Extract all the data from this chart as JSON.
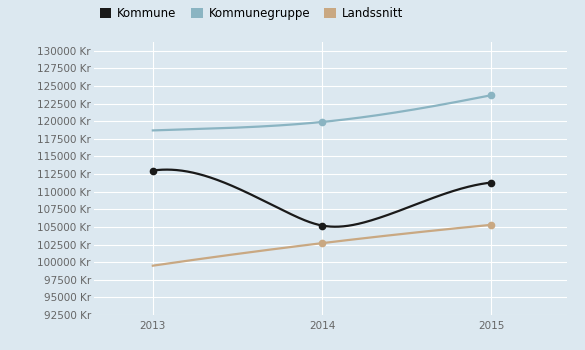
{
  "years": [
    2013,
    2014,
    2015
  ],
  "kommune": [
    113000,
    105200,
    111300
  ],
  "kommunegruppe": [
    118700,
    119900,
    123700
  ],
  "landssnitt": [
    99500,
    102700,
    105300
  ],
  "kommune_color": "#1a1a1a",
  "kommunegruppe_color": "#8ab4c2",
  "landssnitt_color": "#c9a882",
  "background_color": "#dce8f0",
  "grid_color": "#ffffff",
  "ylim_min": 92500,
  "ylim_max": 131250,
  "ytick_min": 92500,
  "ytick_max": 130001,
  "ytick_step": 2500,
  "legend_labels": [
    "Kommune",
    "Kommunegruppe",
    "Landssnitt"
  ],
  "kommune_dot_years": [
    2013,
    2014,
    2015
  ],
  "kommunegruppe_dot_years": [
    2014,
    2015
  ],
  "landssnitt_dot_years": [
    2014,
    2015
  ]
}
